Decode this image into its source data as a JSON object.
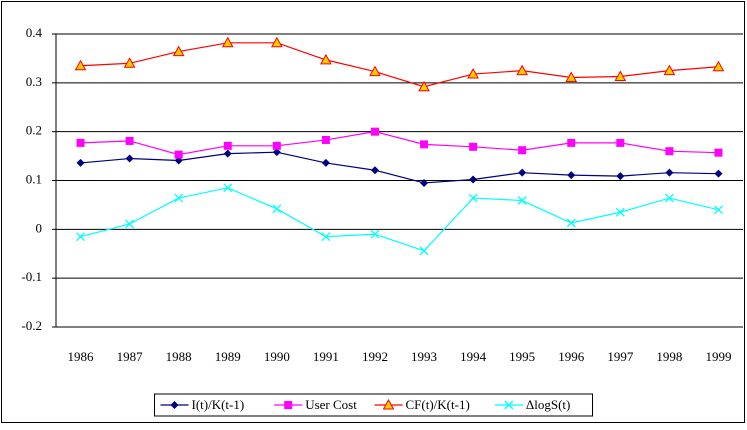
{
  "chart_data": {
    "type": "line",
    "categories": [
      "1986",
      "1987",
      "1988",
      "1989",
      "1990",
      "1991",
      "1992",
      "1993",
      "1994",
      "1995",
      "1996",
      "1997",
      "1998",
      "1999"
    ],
    "series": [
      {
        "name": "I(t)/K(t-1)",
        "color": "#000080",
        "marker": "diamond",
        "values": [
          0.136,
          0.145,
          0.141,
          0.155,
          0.158,
          0.136,
          0.121,
          0.095,
          0.102,
          0.116,
          0.111,
          0.109,
          0.116,
          0.114
        ]
      },
      {
        "name": "User Cost",
        "color": "#ff00ff",
        "marker": "square",
        "values": [
          0.177,
          0.181,
          0.153,
          0.171,
          0.171,
          0.183,
          0.2,
          0.174,
          0.169,
          0.162,
          0.177,
          0.177,
          0.16,
          0.157
        ]
      },
      {
        "name": "CF(t)/K(t-1)",
        "color": "#ff0000",
        "marker": "triangle",
        "values": [
          0.335,
          0.34,
          0.364,
          0.382,
          0.382,
          0.347,
          0.323,
          0.292,
          0.318,
          0.325,
          0.311,
          0.313,
          0.325,
          0.333
        ]
      },
      {
        "name": "ΔlogS(t)",
        "color": "#00ffff",
        "marker": "x",
        "values": [
          -0.015,
          0.011,
          0.064,
          0.085,
          0.042,
          -0.015,
          -0.01,
          -0.044,
          0.064,
          0.059,
          0.013,
          0.035,
          0.064,
          0.04
        ]
      }
    ],
    "ylim": [
      -0.2,
      0.4
    ],
    "yticks": [
      0.4,
      0.3,
      0.2,
      0.1,
      0,
      -0.1,
      -0.2
    ],
    "grid": true,
    "legend": "bottom"
  }
}
